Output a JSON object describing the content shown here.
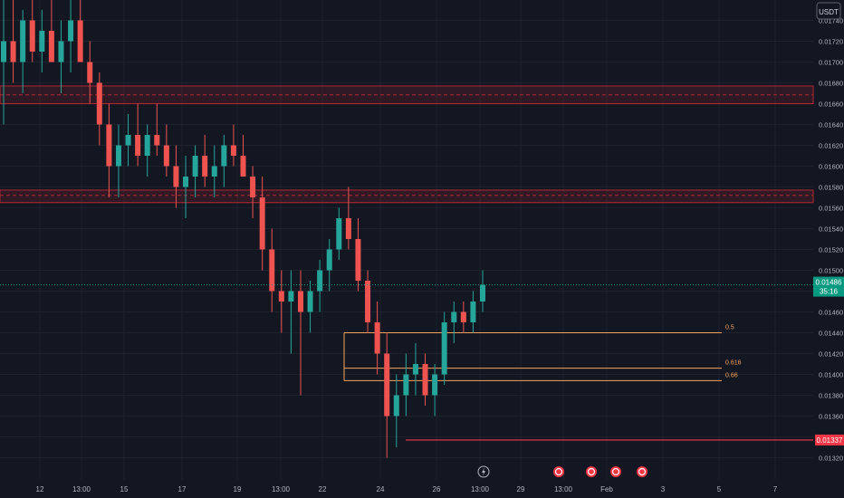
{
  "currency_badge": "USDT",
  "price_axis": {
    "labels": [
      "0.01740",
      "0.01720",
      "0.01700",
      "0.01680",
      "0.01660",
      "0.01640",
      "0.01620",
      "0.01600",
      "0.01580",
      "0.01560",
      "0.01540",
      "0.01520",
      "0.01500",
      "0.01480",
      "0.01460",
      "0.01440",
      "0.01420",
      "0.01400",
      "0.01380",
      "0.01360",
      "0.01340",
      "0.01320"
    ]
  },
  "time_axis": {
    "labels": [
      "12",
      "13:00",
      "15",
      "17",
      "19",
      "13:00",
      "22",
      "24",
      "26",
      "13:00",
      "29",
      "13:00",
      "Feb",
      "3",
      "5",
      "7"
    ]
  },
  "current_price": {
    "value": "0.01486",
    "countdown": "35:16"
  },
  "alert_price": {
    "value": "0.01337"
  },
  "fib_levels": [
    {
      "label": "0.5",
      "price": 0.0144
    },
    {
      "label": "0.616",
      "price": 0.01406
    },
    {
      "label": "0.66",
      "price": 0.01394
    }
  ],
  "zones": [
    {
      "top": 0.01677,
      "bottom": 0.0166,
      "mid": 0.016685
    },
    {
      "top": 0.01577,
      "bottom": 0.01565,
      "mid": 0.01572
    }
  ],
  "event_markers": [
    "flash-icon",
    "dividend-icon",
    "dividend-icon",
    "dividend-icon",
    "dividend-icon"
  ],
  "colors": {
    "up": "#26a69a",
    "down": "#ef5350",
    "fib": "#f7a35c",
    "zone": "#b22833",
    "alert": "#f23645",
    "current": "#089981"
  },
  "chart_data": {
    "type": "candlestick",
    "ylim": [
      0.01315,
      0.0175
    ],
    "candles_ohlc": [
      [
        0.017,
        0.0176,
        0.0164,
        0.0172
      ],
      [
        0.0172,
        0.0176,
        0.0168,
        0.017
      ],
      [
        0.017,
        0.0175,
        0.0167,
        0.0174
      ],
      [
        0.0174,
        0.0176,
        0.017,
        0.0171
      ],
      [
        0.0171,
        0.0175,
        0.0169,
        0.0173
      ],
      [
        0.0173,
        0.0176,
        0.017,
        0.017
      ],
      [
        0.017,
        0.0174,
        0.0167,
        0.0172
      ],
      [
        0.0172,
        0.0176,
        0.0169,
        0.0174
      ],
      [
        0.0174,
        0.0176,
        0.0172,
        0.017
      ],
      [
        0.017,
        0.0172,
        0.0166,
        0.0168
      ],
      [
        0.0168,
        0.0169,
        0.0162,
        0.0164
      ],
      [
        0.0164,
        0.0166,
        0.0157,
        0.016
      ],
      [
        0.016,
        0.0164,
        0.0157,
        0.0162
      ],
      [
        0.0162,
        0.0165,
        0.016,
        0.0163
      ],
      [
        0.0163,
        0.0166,
        0.016,
        0.0161
      ],
      [
        0.0161,
        0.0164,
        0.0159,
        0.0163
      ],
      [
        0.0163,
        0.0166,
        0.0161,
        0.0162
      ],
      [
        0.0162,
        0.0164,
        0.0159,
        0.016
      ],
      [
        0.016,
        0.0162,
        0.0156,
        0.0158
      ],
      [
        0.0158,
        0.0161,
        0.0155,
        0.0159
      ],
      [
        0.0159,
        0.0162,
        0.0157,
        0.0161
      ],
      [
        0.0161,
        0.0163,
        0.0158,
        0.0159
      ],
      [
        0.0159,
        0.0162,
        0.0157,
        0.016
      ],
      [
        0.016,
        0.0163,
        0.0158,
        0.0162
      ],
      [
        0.0162,
        0.0164,
        0.016,
        0.0161
      ],
      [
        0.0161,
        0.0163,
        0.0159,
        0.0159
      ],
      [
        0.0159,
        0.016,
        0.0155,
        0.0157
      ],
      [
        0.0157,
        0.0159,
        0.015,
        0.0152
      ],
      [
        0.0152,
        0.0154,
        0.0146,
        0.0148
      ],
      [
        0.0148,
        0.015,
        0.0144,
        0.0147
      ],
      [
        0.0147,
        0.015,
        0.0142,
        0.0148
      ],
      [
        0.0148,
        0.015,
        0.0138,
        0.0146
      ],
      [
        0.0146,
        0.0149,
        0.0144,
        0.0148
      ],
      [
        0.0148,
        0.0151,
        0.0146,
        0.015
      ],
      [
        0.015,
        0.0153,
        0.0148,
        0.0152
      ],
      [
        0.0152,
        0.0156,
        0.0151,
        0.0155
      ],
      [
        0.0155,
        0.0158,
        0.0152,
        0.0153
      ],
      [
        0.0153,
        0.0155,
        0.0148,
        0.0149
      ],
      [
        0.0149,
        0.015,
        0.0144,
        0.0145
      ],
      [
        0.0145,
        0.0147,
        0.014,
        0.0142
      ],
      [
        0.0142,
        0.0144,
        0.0132,
        0.0136
      ],
      [
        0.0136,
        0.014,
        0.0133,
        0.0138
      ],
      [
        0.0138,
        0.0142,
        0.0136,
        0.014
      ],
      [
        0.014,
        0.0143,
        0.0138,
        0.0141
      ],
      [
        0.0141,
        0.0142,
        0.0137,
        0.0138
      ],
      [
        0.0138,
        0.0141,
        0.0136,
        0.014
      ],
      [
        0.014,
        0.0146,
        0.0139,
        0.0145
      ],
      [
        0.0145,
        0.0147,
        0.0143,
        0.0146
      ],
      [
        0.0146,
        0.0147,
        0.0144,
        0.0145
      ],
      [
        0.0145,
        0.0148,
        0.0144,
        0.0147
      ],
      [
        0.0147,
        0.015,
        0.0146,
        0.01486
      ]
    ]
  }
}
